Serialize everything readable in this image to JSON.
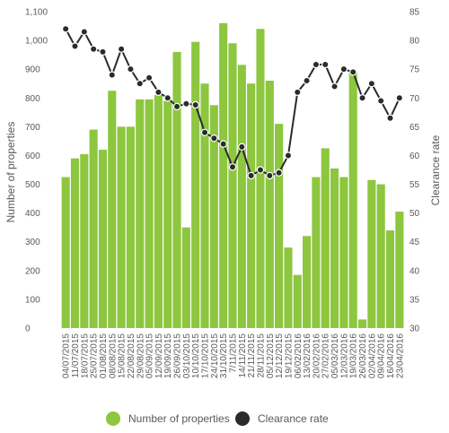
{
  "chart_data": {
    "type": "bar",
    "title": "",
    "xlabel": "",
    "ylabel": "Number of properties",
    "y2label": "Clearance rate",
    "ylim": [
      0,
      1100
    ],
    "y2lim": [
      30,
      85
    ],
    "yticks": [
      "0",
      "100",
      "200",
      "300",
      "400",
      "500",
      "600",
      "700",
      "800",
      "900",
      "1,000",
      "1,100"
    ],
    "y2ticks": [
      "30",
      "35",
      "40",
      "45",
      "50",
      "55",
      "60",
      "65",
      "70",
      "75",
      "80",
      "85"
    ],
    "grid": false,
    "legend_position": "bottom",
    "categories": [
      "04/07/2015",
      "11/07/2015",
      "18/07/2015",
      "25/07/2015",
      "01/08/2015",
      "08/08/2015",
      "15/08/2015",
      "22/08/2015",
      "29/08/2015",
      "05/09/2015",
      "12/09/2015",
      "19/09/2015",
      "26/09/2015",
      "03/10/2015",
      "10/10/2015",
      "17/10/2015",
      "24/10/2015",
      "31/10/2015",
      "7/11/2015",
      "14/11/2015",
      "21/11/2015",
      "28/11/2015",
      "05/12/2015",
      "12/12/2015",
      "19/12/2015",
      "06/02/2016",
      "13/02/2016",
      "20/02/2016",
      "27/02/2016",
      "05/03/2016",
      "12/03/2016",
      "19/03/2016",
      "26/03/2016",
      "02/04/2016",
      "09/04/2016",
      "16/04/2016",
      "23/04/2016"
    ],
    "series": [
      {
        "name": "Number of properties",
        "kind": "bar",
        "axis": "left",
        "color": "#8dc63f",
        "values": [
          525,
          590,
          605,
          690,
          620,
          825,
          700,
          700,
          795,
          795,
          810,
          790,
          960,
          350,
          995,
          850,
          775,
          1060,
          990,
          915,
          850,
          1040,
          860,
          710,
          280,
          185,
          320,
          525,
          625,
          555,
          525,
          890,
          30,
          515,
          500,
          340,
          405
        ]
      },
      {
        "name": "Clearance rate",
        "kind": "line",
        "axis": "right",
        "color": "#2b2b2b",
        "values": [
          82.0,
          79.0,
          81.5,
          78.5,
          78.0,
          74.0,
          78.5,
          75.0,
          72.5,
          73.5,
          71.0,
          70.0,
          68.5,
          69.0,
          68.8,
          64.0,
          63.0,
          62.0,
          58.0,
          61.5,
          56.5,
          57.5,
          56.5,
          57.0,
          60.0,
          71.0,
          73.0,
          75.8,
          75.8,
          72.0,
          75.0,
          74.5,
          70.0,
          72.5,
          69.5,
          66.5,
          70.0
        ]
      }
    ]
  }
}
